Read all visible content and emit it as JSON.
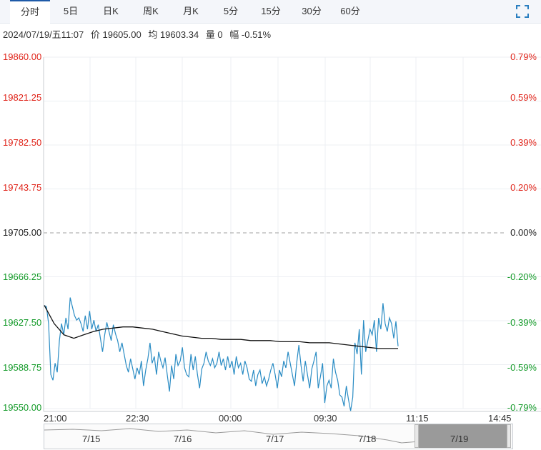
{
  "tabs": [
    {
      "label": "分时",
      "active": true
    },
    {
      "label": "5日"
    },
    {
      "label": "日K"
    },
    {
      "label": "周K"
    },
    {
      "label": "月K"
    },
    {
      "label": "5分"
    },
    {
      "label": "15分"
    },
    {
      "label": "30分"
    },
    {
      "label": "60分"
    }
  ],
  "info": {
    "datetime": "2024/07/19/五11:07",
    "price": "价 19605.00",
    "avg": "均 19603.34",
    "volume": "量 0",
    "change": "幅 -0.51%"
  },
  "expand_icon": "fullscreen-icon",
  "colors": {
    "price_line": "#2a8cc4",
    "avg_line": "#111111",
    "up": "#e0251b",
    "down": "#159b2a"
  },
  "chart_data": {
    "type": "line",
    "ylim": [
      19550,
      19860
    ],
    "baseline": 19705,
    "y_ticks": [
      "19860.00",
      "19821.25",
      "19782.50",
      "19743.75",
      "19705.00",
      "19666.25",
      "19627.50",
      "19588.75",
      "19550.00"
    ],
    "pct_ticks": [
      "0.79%",
      "0.59%",
      "0.39%",
      "0.20%",
      "0.00%",
      "-0.20%",
      "-0.39%",
      "-0.59%",
      "-0.79%"
    ],
    "x_ticks": [
      "21:00",
      "22:30",
      "00:00",
      "09:30",
      "11:15",
      "14:45"
    ],
    "series": [
      {
        "values": [
          19641,
          19640,
          19625,
          19580,
          19575,
          19590,
          19582,
          19610,
          19625,
          19615,
          19630,
          19620,
          19648,
          19640,
          19632,
          19628,
          19630,
          19625,
          19618,
          19632,
          19620,
          19636,
          19620,
          19628,
          19618,
          19624,
          19612,
          19600,
          19615,
          19626,
          19618,
          19610,
          19624,
          19616,
          19610,
          19600,
          19608,
          19598,
          19588,
          19582,
          19594,
          19585,
          19576,
          19586,
          19580,
          19592,
          19570,
          19584,
          19594,
          19608,
          19590,
          19596,
          19580,
          19600,
          19592,
          19586,
          19595,
          19580,
          19565,
          19588,
          19576,
          19598,
          19588,
          19592,
          19604,
          19586,
          19580,
          19578,
          19598,
          19584,
          19596,
          19580,
          19568,
          19585,
          19590,
          19600,
          19592,
          19588,
          19594,
          19586,
          19590,
          19600,
          19588,
          19594,
          19584,
          19596,
          19586,
          19592,
          19580,
          19596,
          19586,
          19590,
          19580,
          19592,
          19586,
          19576,
          19574,
          19584,
          19570,
          19580,
          19584,
          19572,
          19578,
          19570,
          19576,
          19584,
          19590,
          19580,
          19568,
          19584,
          19578,
          19592,
          19586,
          19600,
          19590,
          19580,
          19570,
          19590,
          19606,
          19588,
          19574,
          19592,
          19580,
          19568,
          19585,
          19592,
          19600,
          19568,
          19578,
          19590,
          19555,
          19570,
          19575,
          19568,
          19594,
          19582,
          19575,
          19562,
          19560,
          19552,
          19570,
          19558,
          19548,
          19560,
          19608,
          19598,
          19620,
          19580,
          19628,
          19600,
          19610,
          19620,
          19615,
          19628,
          19600,
          19630,
          19620,
          19643,
          19625,
          19618,
          19630,
          19625,
          19612,
          19627,
          19605
        ]
      },
      {
        "values": [
          19641,
          19625,
          19615,
          19612,
          19615,
          19618,
          19620,
          19621,
          19622,
          19622,
          19621,
          19620,
          19618,
          19616,
          19614,
          19613,
          19612,
          19612,
          19611,
          19611,
          19611,
          19610,
          19610,
          19610,
          19609,
          19609,
          19609,
          19608,
          19608,
          19608,
          19607,
          19606,
          19605,
          19604,
          19603,
          19603,
          19603
        ]
      }
    ]
  }
}
